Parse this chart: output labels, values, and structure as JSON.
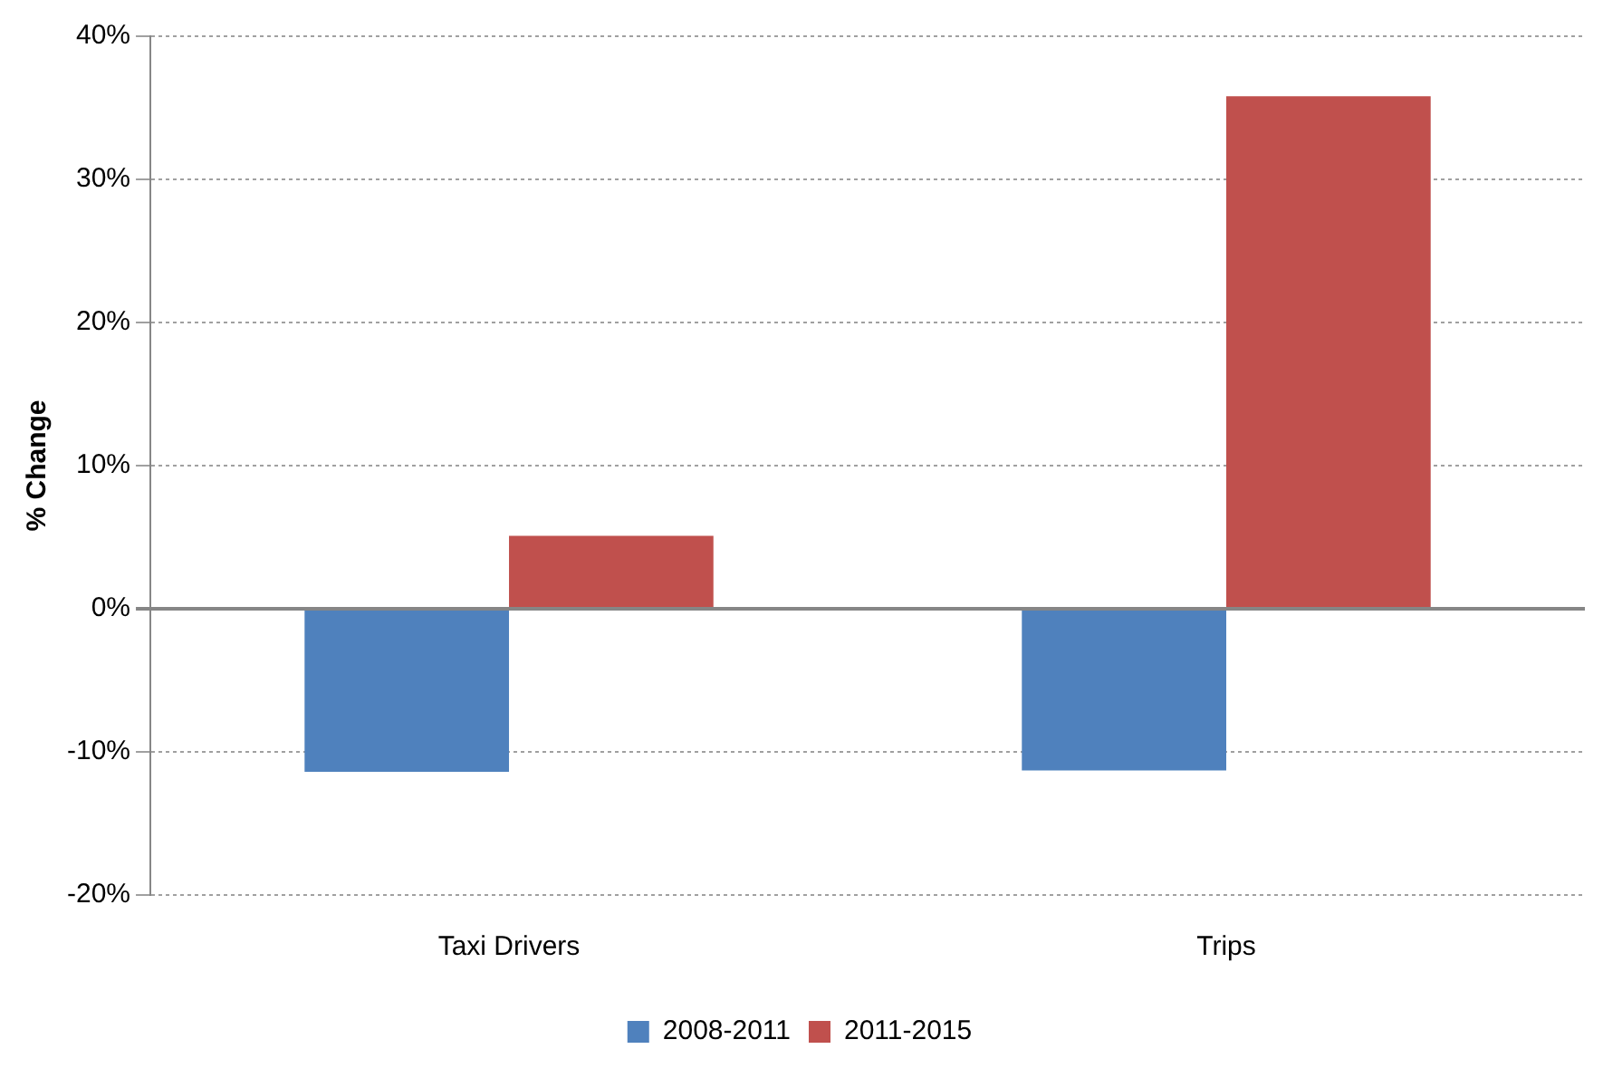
{
  "chart_data": {
    "type": "bar",
    "ylabel": "% Change",
    "categories": [
      "Taxi Drivers",
      "Trips"
    ],
    "series": [
      {
        "name": "2008-2011",
        "color": "#4f81bd",
        "values": [
          -11.4,
          -11.3
        ]
      },
      {
        "name": "2011-2015",
        "color": "#c0504d",
        "values": [
          5.1,
          35.8
        ]
      }
    ],
    "ylim": [
      -20,
      40
    ],
    "yticks": [
      {
        "value": -20,
        "label": "-20%"
      },
      {
        "value": -10,
        "label": "-10%"
      },
      {
        "value": 0,
        "label": "0%"
      },
      {
        "value": 10,
        "label": "10%"
      },
      {
        "value": 20,
        "label": "20%"
      },
      {
        "value": 30,
        "label": "30%"
      },
      {
        "value": 40,
        "label": "40%"
      }
    ],
    "grid": "y",
    "legend": "bottom"
  }
}
